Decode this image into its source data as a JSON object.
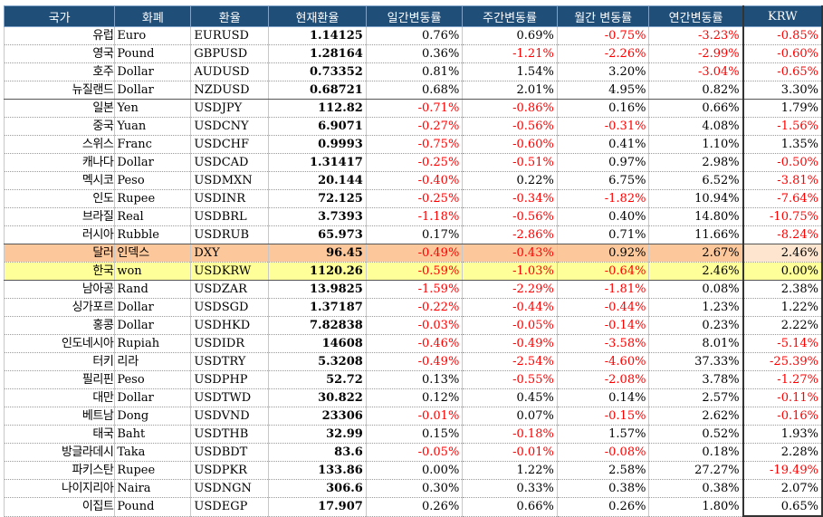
{
  "headers": {
    "country": "국가",
    "currency": "화폐",
    "symbol": "환율",
    "rate": "현재환율",
    "daily": "일간변동률",
    "weekly": "주간변동률",
    "monthly": "월간 변동률",
    "yearly": "연간변동률",
    "krw": "KRW"
  },
  "rows": [
    {
      "country": "유럽",
      "currency": "Euro",
      "symbol": "EURUSD",
      "rate": "1.14125",
      "daily": "0.76%",
      "weekly": "0.69%",
      "monthly": "-0.75%",
      "yearly": "-3.23%",
      "krw": "-0.85%"
    },
    {
      "country": "영국",
      "currency": "Pound",
      "symbol": "GBPUSD",
      "rate": "1.28164",
      "daily": "0.36%",
      "weekly": "-1.21%",
      "monthly": "-2.26%",
      "yearly": "-2.99%",
      "krw": "-0.60%"
    },
    {
      "country": "호주",
      "currency": "Dollar",
      "symbol": "AUDUSD",
      "rate": "0.73352",
      "daily": "0.81%",
      "weekly": "1.54%",
      "monthly": "3.20%",
      "yearly": "-3.04%",
      "krw": "-0.65%"
    },
    {
      "country": "뉴질랜드",
      "currency": "Dollar",
      "symbol": "NZDUSD",
      "rate": "0.68721",
      "daily": "0.68%",
      "weekly": "2.01%",
      "monthly": "4.95%",
      "yearly": "0.82%",
      "krw": "3.30%"
    },
    {
      "country": "일본",
      "currency": "Yen",
      "symbol": "USDJPY",
      "rate": "112.82",
      "daily": "-0.71%",
      "weekly": "-0.86%",
      "monthly": "0.16%",
      "yearly": "0.66%",
      "krw": "1.79%"
    },
    {
      "country": "중국",
      "currency": "Yuan",
      "symbol": "USDCNY",
      "rate": "6.9071",
      "daily": "-0.27%",
      "weekly": "-0.56%",
      "monthly": "-0.31%",
      "yearly": "4.08%",
      "krw": "-1.56%"
    },
    {
      "country": "스위스",
      "currency": "Franc",
      "symbol": "USDCHF",
      "rate": "0.9993",
      "daily": "-0.75%",
      "weekly": "-0.60%",
      "monthly": "0.41%",
      "yearly": "1.10%",
      "krw": "1.35%"
    },
    {
      "country": "캐나다",
      "currency": "Dollar",
      "symbol": "USDCAD",
      "rate": "1.31417",
      "daily": "-0.25%",
      "weekly": "-0.51%",
      "monthly": "0.97%",
      "yearly": "2.98%",
      "krw": "-0.50%"
    },
    {
      "country": "멕시코",
      "currency": "Peso",
      "symbol": "USDMXN",
      "rate": "20.144",
      "daily": "-0.40%",
      "weekly": "0.22%",
      "monthly": "6.75%",
      "yearly": "6.52%",
      "krw": "-3.81%"
    },
    {
      "country": "인도",
      "currency": "Rupee",
      "symbol": "USDINR",
      "rate": "72.125",
      "daily": "-0.25%",
      "weekly": "-0.34%",
      "monthly": "-1.82%",
      "yearly": "10.94%",
      "krw": "-7.64%"
    },
    {
      "country": "브라질",
      "currency": "Real",
      "symbol": "USDBRL",
      "rate": "3.7393",
      "daily": "-1.18%",
      "weekly": "-0.56%",
      "monthly": "0.40%",
      "yearly": "14.80%",
      "krw": "-10.75%"
    },
    {
      "country": "러시아",
      "currency": "Rubble",
      "symbol": "USDRUB",
      "rate": "65.973",
      "daily": "0.17%",
      "weekly": "-2.86%",
      "monthly": "0.71%",
      "yearly": "11.66%",
      "krw": "-8.24%"
    },
    {
      "country": "달러",
      "currency": "인덱스",
      "symbol": "DXY",
      "rate": "96.45",
      "daily": "-0.49%",
      "weekly": "-0.43%",
      "monthly": "0.92%",
      "yearly": "2.67%",
      "krw": "2.46%"
    },
    {
      "country": "한국",
      "currency": "won",
      "symbol": "USDKRW",
      "rate": "1120.26",
      "daily": "-0.59%",
      "weekly": "-1.03%",
      "monthly": "-0.64%",
      "yearly": "2.46%",
      "krw": "0.00%"
    },
    {
      "country": "남아공",
      "currency": "Rand",
      "symbol": "USDZAR",
      "rate": "13.9825",
      "daily": "-1.59%",
      "weekly": "-2.29%",
      "monthly": "-1.81%",
      "yearly": "0.08%",
      "krw": "2.38%"
    },
    {
      "country": "싱가포르",
      "currency": "Dollar",
      "symbol": "USDSGD",
      "rate": "1.37187",
      "daily": "-0.22%",
      "weekly": "-0.44%",
      "monthly": "-0.44%",
      "yearly": "1.23%",
      "krw": "1.22%"
    },
    {
      "country": "홍콩",
      "currency": "Dollar",
      "symbol": "USDHKD",
      "rate": "7.82838",
      "daily": "-0.03%",
      "weekly": "-0.05%",
      "monthly": "-0.14%",
      "yearly": "0.23%",
      "krw": "2.22%"
    },
    {
      "country": "인도네시아",
      "currency": "Rupiah",
      "symbol": "USDIDR",
      "rate": "14608",
      "daily": "-0.46%",
      "weekly": "-0.49%",
      "monthly": "-3.58%",
      "yearly": "8.01%",
      "krw": "-5.14%"
    },
    {
      "country": "터키",
      "currency": "리라",
      "symbol": "USDTRY",
      "rate": "5.3208",
      "daily": "-0.49%",
      "weekly": "-2.54%",
      "monthly": "-4.60%",
      "yearly": "37.33%",
      "krw": "-25.39%"
    },
    {
      "country": "필리핀",
      "currency": "Peso",
      "symbol": "USDPHP",
      "rate": "52.72",
      "daily": "0.13%",
      "weekly": "-0.55%",
      "monthly": "-2.08%",
      "yearly": "3.78%",
      "krw": "-1.27%"
    },
    {
      "country": "대만",
      "currency": "Dollar",
      "symbol": "USDTWD",
      "rate": "30.822",
      "daily": "0.12%",
      "weekly": "0.45%",
      "monthly": "0.14%",
      "yearly": "2.57%",
      "krw": "-0.11%"
    },
    {
      "country": "베트남",
      "currency": "Dong",
      "symbol": "USDVND",
      "rate": "23306",
      "daily": "-0.01%",
      "weekly": "0.07%",
      "monthly": "-0.15%",
      "yearly": "2.62%",
      "krw": "-0.16%"
    },
    {
      "country": "태국",
      "currency": "Baht",
      "symbol": "USDTHB",
      "rate": "32.99",
      "daily": "0.15%",
      "weekly": "-0.18%",
      "monthly": "1.57%",
      "yearly": "0.52%",
      "krw": "1.93%"
    },
    {
      "country": "방글라데시",
      "currency": "Taka",
      "symbol": "USDBDT",
      "rate": "83.6",
      "daily": "-0.05%",
      "weekly": "-0.01%",
      "monthly": "-0.08%",
      "yearly": "0.18%",
      "krw": "2.28%"
    },
    {
      "country": "파키스탄",
      "currency": "Rupee",
      "symbol": "USDPKR",
      "rate": "133.86",
      "daily": "0.00%",
      "weekly": "1.22%",
      "monthly": "2.58%",
      "yearly": "27.27%",
      "krw": "-19.49%"
    },
    {
      "country": "나이지리아",
      "currency": "Naira",
      "symbol": "USDNGN",
      "rate": "306.6",
      "daily": "0.30%",
      "weekly": "0.33%",
      "monthly": "0.38%",
      "yearly": "0.38%",
      "krw": "2.07%"
    },
    {
      "country": "이집트",
      "currency": "Pound",
      "symbol": "USDEGP",
      "rate": "17.907",
      "daily": "0.26%",
      "weekly": "0.66%",
      "monthly": "0.26%",
      "yearly": "1.80%",
      "krw": "0.65%"
    }
  ],
  "highlights": {
    "orange_row": 12,
    "yellow_row": 13,
    "orange_color": "#fbc79b",
    "yellow_color": "#ffff99",
    "negative_color": "#ff0000",
    "header_color": "#1f4e79"
  }
}
